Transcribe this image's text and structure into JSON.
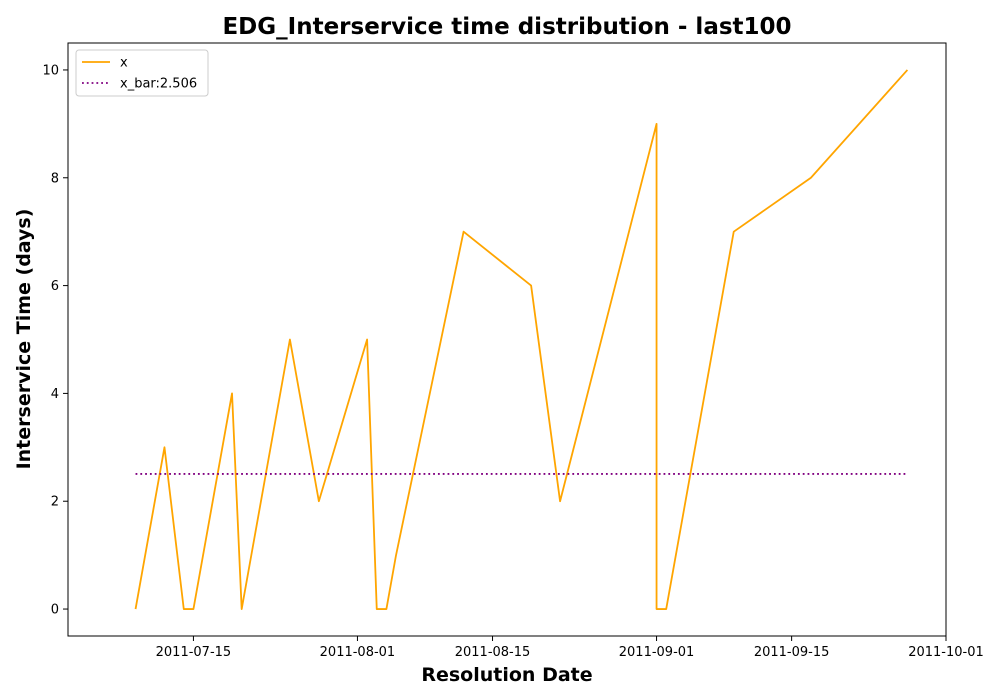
{
  "chart_data": {
    "type": "line",
    "title": "EDG_Interservice time distribution - last100",
    "xlabel": "Resolution Date",
    "ylabel": "Interservice Time (days)",
    "xlim": [
      "2011-07-02",
      "2011-10-01"
    ],
    "ylim": [
      -0.5,
      10.5
    ],
    "x_ticks": [
      "2011-07-15",
      "2011-08-01",
      "2011-08-15",
      "2011-09-01",
      "2011-09-15",
      "2011-10-01"
    ],
    "y_ticks": [
      0,
      2,
      4,
      6,
      8,
      10
    ],
    "grid": false,
    "legend": "upper left",
    "series": [
      {
        "name": "x",
        "color": "#ffa500",
        "style": "solid",
        "points": [
          {
            "x": "2011-07-09",
            "y": 0
          },
          {
            "x": "2011-07-12",
            "y": 3
          },
          {
            "x": "2011-07-14",
            "y": 0
          },
          {
            "x": "2011-07-15",
            "y": 0
          },
          {
            "x": "2011-07-19",
            "y": 4
          },
          {
            "x": "2011-07-20",
            "y": 0
          },
          {
            "x": "2011-07-25",
            "y": 5
          },
          {
            "x": "2011-07-28",
            "y": 2
          },
          {
            "x": "2011-08-02",
            "y": 5
          },
          {
            "x": "2011-08-03",
            "y": 0
          },
          {
            "x": "2011-08-04",
            "y": 0
          },
          {
            "x": "2011-08-05",
            "y": 1
          },
          {
            "x": "2011-08-12",
            "y": 7
          },
          {
            "x": "2011-08-19",
            "y": 6
          },
          {
            "x": "2011-08-22",
            "y": 2
          },
          {
            "x": "2011-09-01",
            "y": 9
          },
          {
            "x": "2011-09-01",
            "y": 0
          },
          {
            "x": "2011-09-02",
            "y": 0
          },
          {
            "x": "2011-09-09",
            "y": 7
          },
          {
            "x": "2011-09-17",
            "y": 8
          },
          {
            "x": "2011-09-27",
            "y": 10
          }
        ]
      },
      {
        "name": "x_bar:2.506",
        "color": "#800080",
        "style": "dotted",
        "points": [
          {
            "x": "2011-07-09",
            "y": 2.506
          },
          {
            "x": "2011-09-27",
            "y": 2.506
          }
        ]
      }
    ]
  }
}
